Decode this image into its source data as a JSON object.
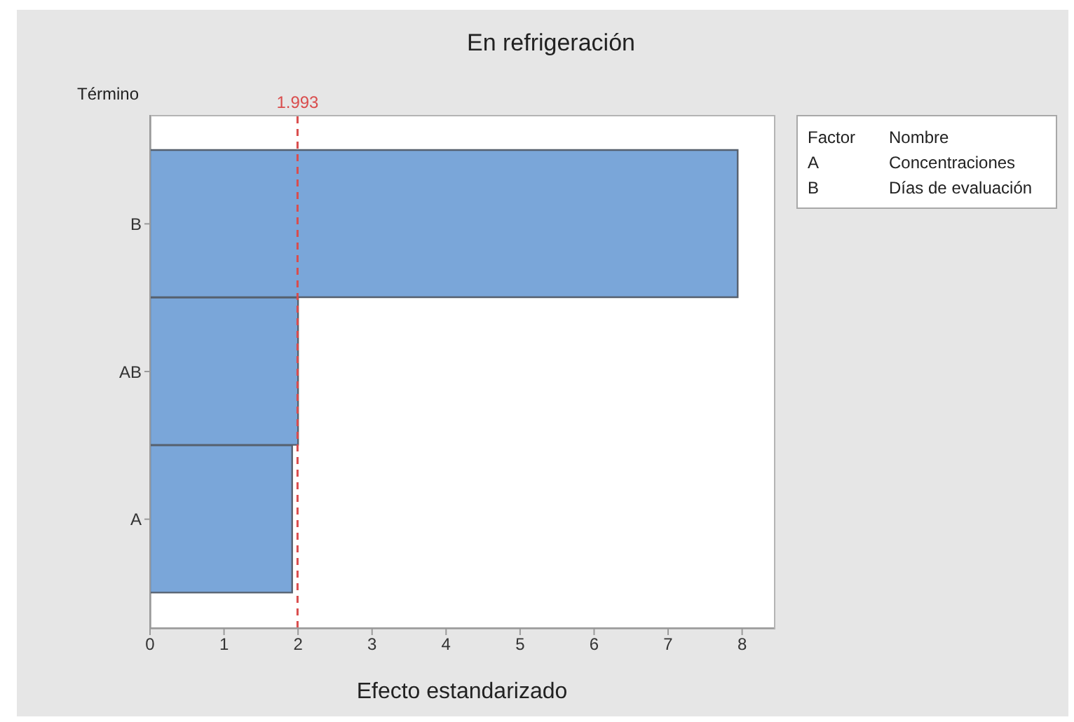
{
  "chart_data": {
    "type": "bar",
    "orientation": "horizontal",
    "title": "En refrigeración",
    "xlabel": "Efecto estandarizado",
    "ylabel": "Término",
    "categories": [
      "B",
      "AB",
      "A"
    ],
    "values": [
      7.94,
      2.0,
      1.92
    ],
    "color": "#7aa6d9",
    "xlim": [
      0,
      8.43
    ],
    "xticks": [
      0,
      1,
      2,
      3,
      4,
      5,
      6,
      7,
      8
    ],
    "ref_lines": [
      {
        "axis": "x",
        "value": 1.993,
        "label": "1.993",
        "color": "#d94c4c",
        "line_style": "dashed"
      }
    ],
    "annotations": [
      "Factor",
      "Nombre",
      "A",
      "Concentraciones",
      "B",
      "Días de evaluación"
    ]
  }
}
